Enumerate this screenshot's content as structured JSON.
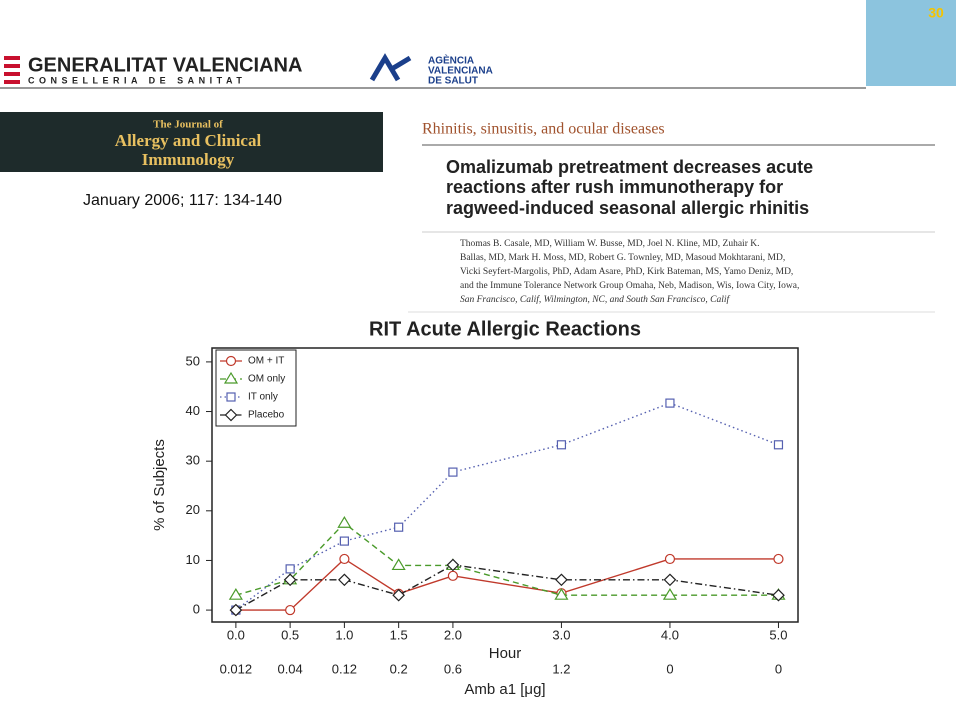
{
  "header": {
    "left_logo_1": "GENERALITAT VALENCIANA",
    "left_logo_2": "CONSELLERIA DE SANITAT",
    "agency": [
      "AGÈNCIA",
      "VALENCIANA",
      "DE SALUT"
    ],
    "badge": "30"
  },
  "journal": {
    "name": [
      "The Journal of",
      "Allergy and Clinical",
      "Immunology"
    ],
    "citation": "January 2006; 117: 134-140"
  },
  "article": {
    "section": "Rhinitis, sinusitis, and ocular diseases",
    "title": [
      "Omalizumab pretreatment decreases acute",
      "reactions after rush immunotherapy for",
      "ragweed-induced seasonal allergic rhinitis"
    ],
    "authors": [
      "Thomas B. Casale, MD, William W. Busse, MD, Joel N. Kline, MD, Zuhair K.",
      "Ballas, MD, Mark H. Moss, MD, Robert G. Townley, MD, Masoud Mokhtarani, MD,",
      "Vicki Seyfert-Margolis, PhD, Adam Asare, PhD, Kirk Bateman, MS, Yamo Deniz, MD,",
      "and the Immune Tolerance Network Group Omaha, Neb, Madison, Wis, Iowa City, Iowa,",
      "San Francisco, Calif, Wilmington, NC, and South San Francisco, Calif"
    ]
  },
  "chart_data": {
    "type": "line",
    "title": "RIT Acute Allergic Reactions",
    "xlabel": "Hour",
    "ylabel": "% of Subjects",
    "x": [
      0,
      0.5,
      1,
      1.5,
      2,
      3,
      4,
      5
    ],
    "xlim": [
      -0.22,
      5.18
    ],
    "xticks": [
      {
        "value": 0,
        "label": "0.0"
      },
      {
        "value": 0.5,
        "label": "0.5"
      },
      {
        "value": 1,
        "label": "1.0"
      },
      {
        "value": 1.5,
        "label": "1.5"
      },
      {
        "value": 2,
        "label": "2.0"
      },
      {
        "value": 3,
        "label": "3.0"
      },
      {
        "value": 4,
        "label": "4.0"
      },
      {
        "value": 5,
        "label": "5.0"
      }
    ],
    "x2label": "Amb a1 [μg]",
    "x2_labels": [
      0.012,
      0.04,
      0.12,
      0.2,
      0.6,
      1.2,
      0,
      0
    ],
    "ylim": [
      -2.4,
      52.8
    ],
    "yticks": [
      0,
      10,
      20,
      30,
      40,
      50
    ],
    "legend": "upper left",
    "series": [
      {
        "name": "OM + IT",
        "color": "#c0392b",
        "marker": "circle",
        "line_style": "solid",
        "values": [
          0,
          0,
          10.3,
          3.3,
          6.9,
          3.4,
          10.3,
          10.3
        ]
      },
      {
        "name": "OM only",
        "color": "#4a9a2a",
        "marker": "triangle",
        "line_style": "dashed",
        "values": [
          3,
          6.1,
          17.5,
          9,
          9,
          3,
          3,
          3
        ]
      },
      {
        "name": "IT only",
        "color": "#5560b0",
        "marker": "square",
        "line_style": "dotted",
        "values": [
          0,
          8.3,
          13.9,
          16.7,
          27.8,
          33.3,
          41.7,
          33.3
        ]
      },
      {
        "name": "Placebo",
        "color": "#222222",
        "marker": "diamond",
        "line_style": "dashdot",
        "values": [
          0,
          6.1,
          6.1,
          3,
          9.1,
          6.1,
          6.1,
          3
        ]
      }
    ]
  }
}
